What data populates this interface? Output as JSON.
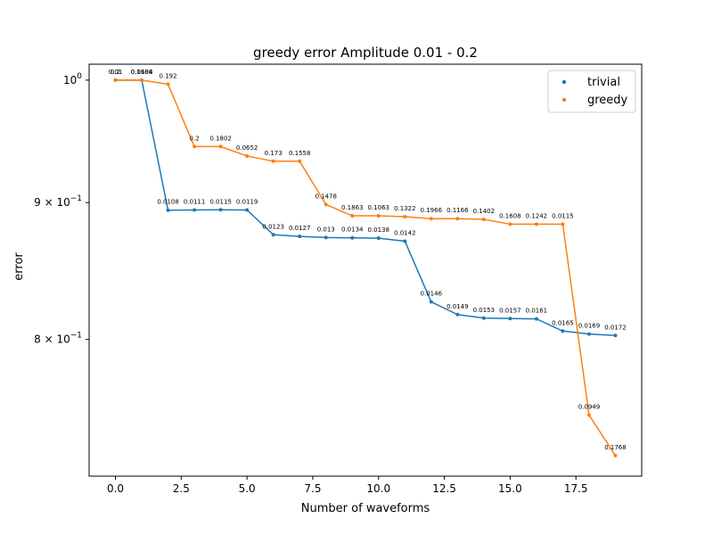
{
  "chart_data": {
    "type": "line",
    "title": "greedy error Amplitude 0.01 - 0.2",
    "xlabel": "Number of waveforms",
    "ylabel": "error",
    "xlim": [
      -1.0,
      20.0
    ],
    "ylim": [
      0.7112,
      1.0138
    ],
    "yscale": "log",
    "x_ticks": [
      0,
      2.5,
      5,
      7.5,
      10,
      12.5,
      15,
      17.5
    ],
    "x_tick_labels": [
      "0.0",
      "2.5",
      "5.0",
      "7.5",
      "10.0",
      "12.5",
      "15.0",
      "17.5"
    ],
    "y_ticks": [
      {
        "value": 1.0,
        "base": "10",
        "exp": "0",
        "coef": ""
      },
      {
        "value": 0.9,
        "base": "10",
        "exp": "−1",
        "coef": "9 × "
      },
      {
        "value": 0.8,
        "base": "10",
        "exp": "−1",
        "coef": "8 × "
      }
    ],
    "legend": {
      "position": "top-right"
    },
    "grid": false,
    "series": [
      {
        "name": "trivial",
        "color": "#1f77b4",
        "x": [
          0,
          1,
          2,
          3,
          4,
          5,
          6,
          7,
          8,
          9,
          10,
          11,
          12,
          13,
          14,
          15,
          16,
          17,
          18,
          19
        ],
        "y": [
          1.0,
          1.0,
          0.8941,
          0.8943,
          0.8944,
          0.8943,
          0.8754,
          0.8742,
          0.8733,
          0.8731,
          0.8728,
          0.8706,
          0.8263,
          0.8173,
          0.8148,
          0.8145,
          0.8143,
          0.8058,
          0.8037,
          0.8027
        ],
        "labels": [
          "0.01",
          "0.0104",
          "0.0108",
          "0.0111",
          "0.0115",
          "0.0119",
          "0.0123",
          "0.0127",
          "0.013",
          "0.0134",
          "0.0138",
          "0.0142",
          "0.0146",
          "0.0149",
          "0.0153",
          "0.0157",
          "0.0161",
          "0.0165",
          "0.0169",
          "0.0172"
        ]
      },
      {
        "name": "greedy",
        "color": "#ff7f0e",
        "x": [
          0,
          1,
          2,
          3,
          4,
          5,
          6,
          7,
          8,
          9,
          10,
          11,
          12,
          13,
          14,
          15,
          16,
          17,
          18,
          19
        ],
        "y": [
          1.0,
          1.0,
          0.9965,
          0.9444,
          0.9444,
          0.9368,
          0.9326,
          0.9326,
          0.8985,
          0.8898,
          0.8898,
          0.8891,
          0.8876,
          0.8876,
          0.8871,
          0.8834,
          0.8834,
          0.8834,
          0.7496,
          0.7239
        ],
        "labels": [
          "0.2",
          "0.1688",
          "0.192",
          "0.2",
          "0.1802",
          "0.0652",
          "0.173",
          "0.1558",
          "0.1478",
          "0.1863",
          "0.1063",
          "0.1322",
          "0.1966",
          "0.1166",
          "0.1402",
          "0.1608",
          "0.1242",
          "0.0115",
          "0.0949",
          "0.1768"
        ]
      }
    ]
  }
}
